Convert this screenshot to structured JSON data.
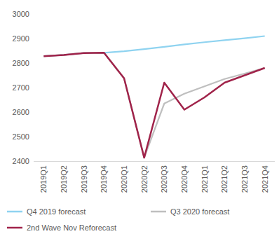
{
  "chart_data": {
    "type": "line",
    "categories": [
      "2019Q1",
      "2019Q2",
      "2019Q3",
      "2019Q4",
      "2020Q1",
      "2020Q2",
      "2020Q3",
      "2020Q4",
      "2021Q1",
      "2021Q2",
      "2021Q3",
      "2021Q4"
    ],
    "series": [
      {
        "name": "Q4 2019 forecast",
        "color": "#8fd3f0",
        "values": [
          2828,
          2833,
          2841,
          2842,
          2848,
          2857,
          2866,
          2876,
          2885,
          2893,
          2901,
          2910
        ]
      },
      {
        "name": "Q3 2020 forecast",
        "color": "#bfbfbf",
        "values": [
          2828,
          2833,
          2841,
          2842,
          2738,
          2414,
          2635,
          2675,
          2705,
          2735,
          2757,
          2780
        ]
      },
      {
        "name": "2nd Wave Nov Reforecast",
        "color": "#a0234a",
        "values": [
          2828,
          2833,
          2841,
          2842,
          2738,
          2414,
          2720,
          2610,
          2660,
          2720,
          2750,
          2780
        ]
      }
    ],
    "ylim": [
      2400,
      3000
    ],
    "yticks": [
      2400,
      2500,
      2600,
      2700,
      2800,
      2900,
      3000
    ],
    "grid": false,
    "legend": "bottom"
  }
}
